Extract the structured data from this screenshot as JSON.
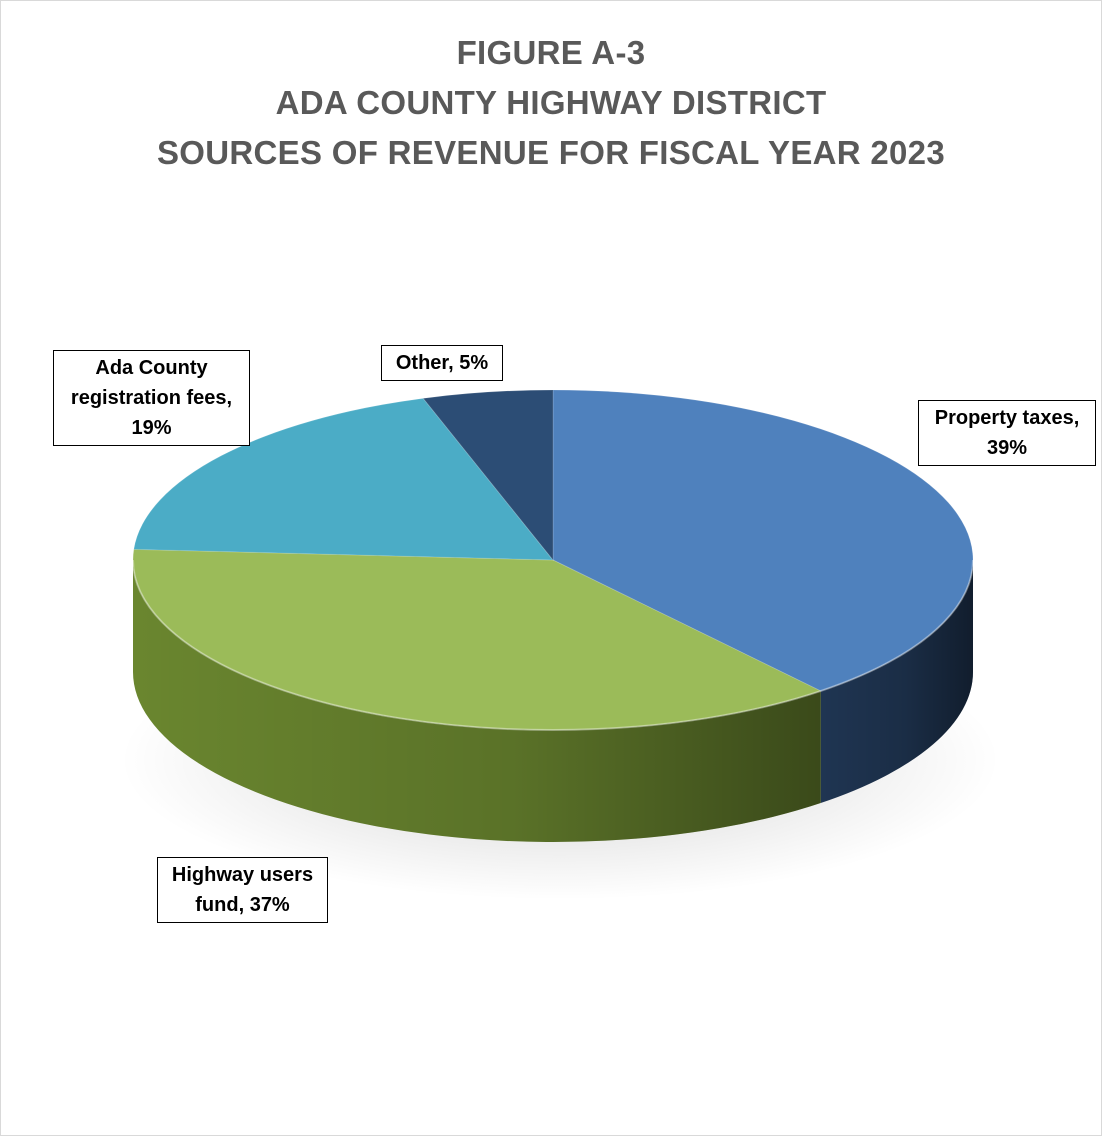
{
  "chart_data": {
    "type": "pie",
    "title": [
      "FIGURE A-3",
      "ADA COUNTY HIGHWAY DISTRICT",
      "SOURCES OF REVENUE FOR FISCAL YEAR 2023"
    ],
    "style": "3d",
    "categories": [
      "Property taxes",
      "Highway users fund",
      "Ada County registration fees",
      "Other"
    ],
    "values": [
      39,
      37,
      19,
      5
    ],
    "unit": "%",
    "data_labels": [
      "Property taxes, 39%",
      "Highway users fund, 37%",
      "Ada County registration fees, 19%",
      "Other, 5%"
    ],
    "colors": [
      "#4f81bd",
      "#9bbb59",
      "#4bacc6",
      "#2c4d75"
    ],
    "side_colors": [
      "#1f3552",
      "#6a862f",
      "#2f7d90",
      "#1b2f48"
    ]
  }
}
